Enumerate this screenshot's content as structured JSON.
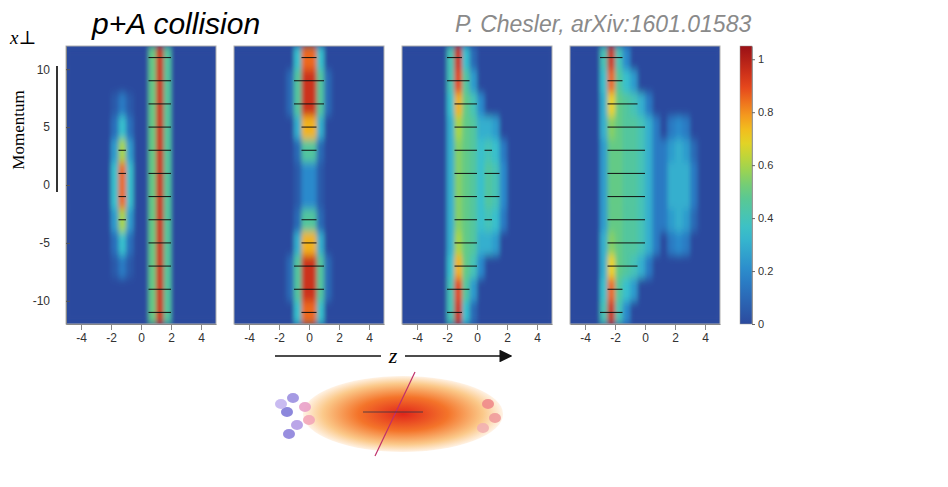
{
  "title": "p+A collision",
  "citation": "P. Chesler, arXiv:1601.01583",
  "side_label": "Momentum",
  "y_label": "x⊥",
  "x_label": "z",
  "color_bar": {
    "range": [
      0,
      1.05
    ],
    "ticks": [
      0,
      0.2,
      0.4,
      0.6,
      0.8,
      1
    ]
  },
  "chart_data": [
    {
      "type": "heatmap",
      "xlim": [
        -5,
        5
      ],
      "ylim": [
        -12,
        12
      ],
      "xticks": [
        -4,
        -2,
        0,
        2,
        4
      ],
      "yticks": [
        -10,
        -5,
        0,
        5,
        10
      ],
      "tick_labels": true,
      "x": [
        -4.75,
        -4.25,
        -3.75,
        -3.25,
        -2.75,
        -2.25,
        -1.75,
        -1.25,
        -0.75,
        -0.25,
        0.25,
        0.75,
        1.25,
        1.75,
        2.25,
        2.75,
        3.25,
        3.75,
        4.25,
        4.75
      ],
      "y": [
        -11,
        -9,
        -7,
        -5,
        -3,
        -1,
        1,
        3,
        5,
        7,
        9,
        11
      ],
      "cells": [
        [
          0,
          0,
          0,
          0,
          0,
          0,
          0,
          0,
          0,
          0,
          0,
          0.5,
          0.95,
          0.45,
          0,
          0,
          0,
          0,
          0,
          0
        ],
        [
          0,
          0,
          0,
          0,
          0,
          0,
          0,
          0,
          0,
          0,
          0,
          0.5,
          0.95,
          0.45,
          0,
          0,
          0,
          0,
          0,
          0
        ],
        [
          0,
          0,
          0,
          0,
          0,
          0,
          0.05,
          0.15,
          0.05,
          0,
          0,
          0.5,
          0.95,
          0.45,
          0,
          0,
          0,
          0,
          0,
          0
        ],
        [
          0,
          0,
          0,
          0,
          0,
          0,
          0.12,
          0.35,
          0.12,
          0,
          0,
          0.5,
          0.95,
          0.45,
          0,
          0,
          0,
          0,
          0,
          0
        ],
        [
          0,
          0,
          0,
          0,
          0,
          0,
          0.25,
          0.6,
          0.25,
          0,
          0,
          0.5,
          0.95,
          0.45,
          0,
          0,
          0,
          0,
          0,
          0
        ],
        [
          0,
          0,
          0,
          0,
          0,
          0,
          0.35,
          0.85,
          0.35,
          0,
          0,
          0.5,
          0.95,
          0.45,
          0,
          0,
          0,
          0,
          0,
          0
        ],
        [
          0,
          0,
          0,
          0,
          0,
          0,
          0.35,
          0.85,
          0.35,
          0,
          0,
          0.5,
          0.95,
          0.45,
          0,
          0,
          0,
          0,
          0,
          0
        ],
        [
          0,
          0,
          0,
          0,
          0,
          0,
          0.25,
          0.6,
          0.25,
          0,
          0,
          0.5,
          0.95,
          0.45,
          0,
          0,
          0,
          0,
          0,
          0
        ],
        [
          0,
          0,
          0,
          0,
          0,
          0,
          0.12,
          0.35,
          0.12,
          0,
          0,
          0.5,
          0.95,
          0.45,
          0,
          0,
          0,
          0,
          0,
          0
        ],
        [
          0,
          0,
          0,
          0,
          0,
          0,
          0.05,
          0.15,
          0.05,
          0,
          0,
          0.5,
          0.95,
          0.45,
          0,
          0,
          0,
          0,
          0,
          0
        ],
        [
          0,
          0,
          0,
          0,
          0,
          0,
          0,
          0,
          0,
          0,
          0,
          0.5,
          0.95,
          0.45,
          0,
          0,
          0,
          0,
          0,
          0
        ],
        [
          0,
          0,
          0,
          0,
          0,
          0,
          0,
          0,
          0,
          0,
          0,
          0.5,
          0.95,
          0.45,
          0,
          0,
          0,
          0,
          0,
          0
        ]
      ]
    },
    {
      "type": "heatmap",
      "xlim": [
        -5,
        5
      ],
      "ylim": [
        -12,
        12
      ],
      "xticks": [
        -4,
        -2,
        0,
        2,
        4
      ],
      "tick_labels": "x",
      "x": [
        -4.75,
        -4.25,
        -3.75,
        -3.25,
        -2.75,
        -2.25,
        -1.75,
        -1.25,
        -0.75,
        -0.25,
        0.25,
        0.75,
        1.25,
        1.75,
        2.25,
        2.75,
        3.25,
        3.75,
        4.25,
        4.75
      ],
      "y": [
        -11,
        -9,
        -7,
        -5,
        -3,
        -1,
        1,
        3,
        5,
        7,
        9,
        11
      ],
      "cells": [
        [
          0,
          0,
          0,
          0,
          0,
          0,
          0,
          0,
          0.35,
          0.85,
          0.85,
          0.35,
          0,
          0,
          0,
          0,
          0,
          0,
          0,
          0
        ],
        [
          0,
          0,
          0,
          0,
          0,
          0,
          0,
          0.1,
          0.45,
          0.95,
          0.95,
          0.45,
          0.1,
          0,
          0,
          0,
          0,
          0,
          0,
          0
        ],
        [
          0,
          0,
          0,
          0,
          0,
          0,
          0,
          0.1,
          0.45,
          0.95,
          0.95,
          0.45,
          0.1,
          0,
          0,
          0,
          0,
          0,
          0,
          0
        ],
        [
          0,
          0,
          0,
          0,
          0,
          0,
          0,
          0,
          0.3,
          0.75,
          0.75,
          0.3,
          0,
          0,
          0,
          0,
          0,
          0,
          0,
          0
        ],
        [
          0,
          0,
          0,
          0,
          0,
          0,
          0,
          0,
          0.1,
          0.45,
          0.45,
          0.1,
          0,
          0,
          0,
          0,
          0,
          0,
          0,
          0
        ],
        [
          0,
          0,
          0,
          0,
          0,
          0,
          0,
          0,
          0.05,
          0.2,
          0.2,
          0.05,
          0,
          0,
          0,
          0,
          0,
          0,
          0,
          0
        ],
        [
          0,
          0,
          0,
          0,
          0,
          0,
          0,
          0,
          0.05,
          0.2,
          0.2,
          0.05,
          0,
          0,
          0,
          0,
          0,
          0,
          0,
          0
        ],
        [
          0,
          0,
          0,
          0,
          0,
          0,
          0,
          0,
          0.1,
          0.45,
          0.45,
          0.1,
          0,
          0,
          0,
          0,
          0,
          0,
          0,
          0
        ],
        [
          0,
          0,
          0,
          0,
          0,
          0,
          0,
          0,
          0.3,
          0.75,
          0.75,
          0.3,
          0,
          0,
          0,
          0,
          0,
          0,
          0,
          0
        ],
        [
          0,
          0,
          0,
          0,
          0,
          0,
          0,
          0.1,
          0.45,
          0.95,
          0.95,
          0.45,
          0.1,
          0,
          0,
          0,
          0,
          0,
          0,
          0
        ],
        [
          0,
          0,
          0,
          0,
          0,
          0,
          0,
          0.1,
          0.45,
          0.95,
          0.95,
          0.45,
          0.1,
          0,
          0,
          0,
          0,
          0,
          0,
          0
        ],
        [
          0,
          0,
          0,
          0,
          0,
          0,
          0,
          0,
          0.35,
          0.85,
          0.85,
          0.35,
          0,
          0,
          0,
          0,
          0,
          0,
          0,
          0
        ]
      ]
    },
    {
      "type": "heatmap",
      "xlim": [
        -5,
        5
      ],
      "ylim": [
        -12,
        12
      ],
      "xticks": [
        -4,
        -2,
        0,
        2,
        4
      ],
      "tick_labels": "x",
      "x": [
        -4.75,
        -4.25,
        -3.75,
        -3.25,
        -2.75,
        -2.25,
        -1.75,
        -1.25,
        -0.75,
        -0.25,
        0.25,
        0.75,
        1.25,
        1.75,
        2.25,
        2.75,
        3.25,
        3.75,
        4.25,
        4.75
      ],
      "y": [
        -11,
        -9,
        -7,
        -5,
        -3,
        -1,
        1,
        3,
        5,
        7,
        9,
        11
      ],
      "cells": [
        [
          0,
          0,
          0,
          0,
          0,
          0,
          0.4,
          0.95,
          0.35,
          0.1,
          0,
          0,
          0,
          0,
          0,
          0,
          0,
          0,
          0,
          0
        ],
        [
          0,
          0,
          0,
          0,
          0,
          0,
          0.4,
          0.9,
          0.45,
          0.25,
          0,
          0,
          0,
          0,
          0,
          0,
          0,
          0,
          0,
          0
        ],
        [
          0,
          0,
          0,
          0,
          0,
          0,
          0.35,
          0.75,
          0.5,
          0.4,
          0.2,
          0,
          0,
          0,
          0,
          0,
          0,
          0,
          0,
          0
        ],
        [
          0,
          0,
          0,
          0,
          0,
          0,
          0.3,
          0.6,
          0.5,
          0.45,
          0.3,
          0.3,
          0.25,
          0,
          0,
          0,
          0,
          0,
          0,
          0
        ],
        [
          0,
          0,
          0,
          0,
          0,
          0,
          0.3,
          0.55,
          0.5,
          0.45,
          0.35,
          0.4,
          0.35,
          0.15,
          0,
          0,
          0,
          0,
          0,
          0
        ],
        [
          0,
          0,
          0,
          0,
          0,
          0,
          0.3,
          0.55,
          0.5,
          0.45,
          0.35,
          0.45,
          0.4,
          0.2,
          0,
          0,
          0,
          0,
          0,
          0
        ],
        [
          0,
          0,
          0,
          0,
          0,
          0,
          0.3,
          0.55,
          0.5,
          0.45,
          0.35,
          0.45,
          0.4,
          0.2,
          0,
          0,
          0,
          0,
          0,
          0
        ],
        [
          0,
          0,
          0,
          0,
          0,
          0,
          0.3,
          0.55,
          0.5,
          0.45,
          0.35,
          0.4,
          0.35,
          0.15,
          0,
          0,
          0,
          0,
          0,
          0
        ],
        [
          0,
          0,
          0,
          0,
          0,
          0,
          0.3,
          0.6,
          0.5,
          0.45,
          0.3,
          0.3,
          0.25,
          0,
          0,
          0,
          0,
          0,
          0,
          0
        ],
        [
          0,
          0,
          0,
          0,
          0,
          0,
          0.35,
          0.75,
          0.5,
          0.4,
          0.2,
          0,
          0,
          0,
          0,
          0,
          0,
          0,
          0,
          0
        ],
        [
          0,
          0,
          0,
          0,
          0,
          0,
          0.4,
          0.9,
          0.45,
          0.25,
          0,
          0,
          0,
          0,
          0,
          0,
          0,
          0,
          0,
          0
        ],
        [
          0,
          0,
          0,
          0,
          0,
          0,
          0.4,
          0.95,
          0.35,
          0.1,
          0,
          0,
          0,
          0,
          0,
          0,
          0,
          0,
          0,
          0
        ]
      ]
    },
    {
      "type": "heatmap",
      "xlim": [
        -5,
        5
      ],
      "ylim": [
        -12,
        12
      ],
      "xticks": [
        -4,
        -2,
        0,
        2,
        4
      ],
      "tick_labels": "x",
      "x": [
        -4.75,
        -4.25,
        -3.75,
        -3.25,
        -2.75,
        -2.25,
        -1.75,
        -1.25,
        -0.75,
        -0.25,
        0.25,
        0.75,
        1.25,
        1.75,
        2.25,
        2.75,
        3.25,
        3.75,
        4.25,
        4.75
      ],
      "y": [
        -11,
        -9,
        -7,
        -5,
        -3,
        -1,
        1,
        3,
        5,
        7,
        9,
        11
      ],
      "cells": [
        [
          0,
          0,
          0,
          0,
          0.4,
          0.95,
          0.4,
          0.2,
          0,
          0,
          0,
          0,
          0,
          0,
          0,
          0,
          0,
          0,
          0,
          0
        ],
        [
          0,
          0,
          0,
          0,
          0.35,
          0.85,
          0.45,
          0.35,
          0.25,
          0,
          0,
          0,
          0,
          0,
          0,
          0,
          0,
          0,
          0,
          0
        ],
        [
          0,
          0,
          0,
          0,
          0.3,
          0.7,
          0.5,
          0.45,
          0.4,
          0.3,
          0.15,
          0,
          0,
          0,
          0,
          0,
          0,
          0,
          0,
          0
        ],
        [
          0,
          0,
          0,
          0,
          0.3,
          0.55,
          0.5,
          0.45,
          0.45,
          0.4,
          0.3,
          0.15,
          0,
          0.15,
          0.2,
          0.15,
          0,
          0,
          0,
          0
        ],
        [
          0,
          0,
          0,
          0,
          0.25,
          0.5,
          0.5,
          0.45,
          0.45,
          0.4,
          0.3,
          0.15,
          0.15,
          0.25,
          0.3,
          0.25,
          0.1,
          0,
          0,
          0
        ],
        [
          0,
          0,
          0,
          0,
          0.25,
          0.5,
          0.5,
          0.45,
          0.45,
          0.4,
          0.3,
          0.15,
          0.15,
          0.3,
          0.3,
          0.3,
          0.15,
          0,
          0,
          0
        ],
        [
          0,
          0,
          0,
          0,
          0.25,
          0.5,
          0.5,
          0.45,
          0.45,
          0.4,
          0.3,
          0.15,
          0.15,
          0.3,
          0.3,
          0.3,
          0.15,
          0,
          0,
          0
        ],
        [
          0,
          0,
          0,
          0,
          0.25,
          0.5,
          0.5,
          0.45,
          0.45,
          0.4,
          0.3,
          0.15,
          0.15,
          0.25,
          0.3,
          0.25,
          0.1,
          0,
          0,
          0
        ],
        [
          0,
          0,
          0,
          0,
          0.3,
          0.55,
          0.5,
          0.45,
          0.45,
          0.4,
          0.3,
          0.15,
          0,
          0.15,
          0.2,
          0.15,
          0,
          0,
          0,
          0
        ],
        [
          0,
          0,
          0,
          0,
          0.3,
          0.7,
          0.5,
          0.45,
          0.4,
          0.3,
          0.15,
          0,
          0,
          0,
          0,
          0,
          0,
          0,
          0,
          0
        ],
        [
          0,
          0,
          0,
          0,
          0.35,
          0.85,
          0.45,
          0.35,
          0.25,
          0,
          0,
          0,
          0,
          0,
          0,
          0,
          0,
          0,
          0,
          0
        ],
        [
          0,
          0,
          0,
          0,
          0.4,
          0.95,
          0.4,
          0.2,
          0,
          0,
          0,
          0,
          0,
          0,
          0,
          0,
          0,
          0,
          0,
          0
        ]
      ]
    }
  ]
}
